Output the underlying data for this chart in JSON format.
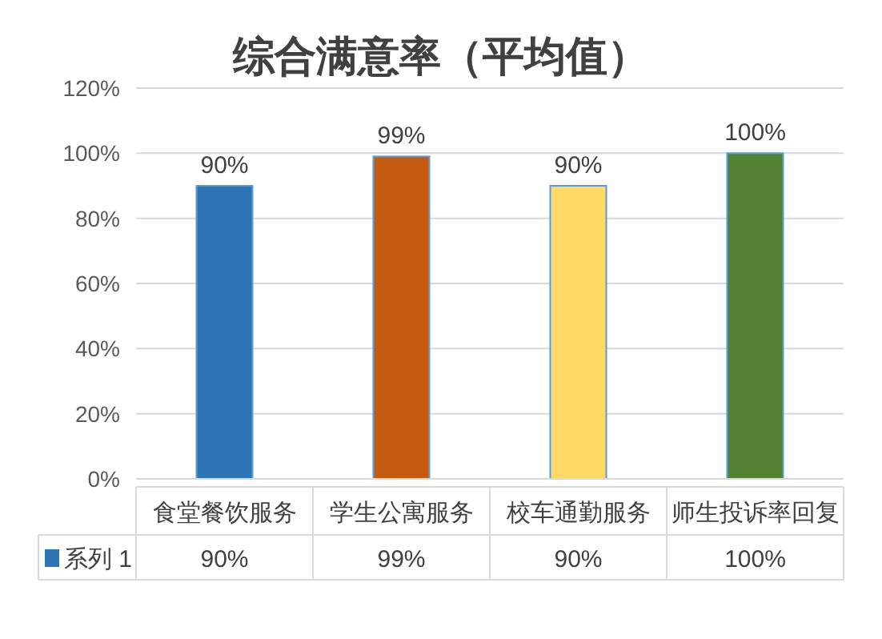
{
  "chart_data": {
    "type": "bar",
    "title": "综合满意率（平均值）",
    "categories": [
      "食堂餐饮服务",
      "学生公寓服务",
      "校车通勤服务",
      "师生投诉率回复"
    ],
    "series": [
      {
        "name": "系列 1",
        "color": "#2e75b6",
        "colors": [
          "#2e75b6",
          "#c55a11",
          "#ffd966",
          "#548235"
        ],
        "values": [
          90,
          99,
          90,
          100
        ],
        "value_labels": [
          "90%",
          "99%",
          "90%",
          "100%"
        ]
      }
    ],
    "ylim": [
      0,
      120
    ],
    "yticks": [
      {
        "value": 0,
        "label": "0%"
      },
      {
        "value": 20,
        "label": "20%"
      },
      {
        "value": 40,
        "label": "40%"
      },
      {
        "value": 60,
        "label": "60%"
      },
      {
        "value": 80,
        "label": "80%"
      },
      {
        "value": 100,
        "label": "100%"
      },
      {
        "value": 120,
        "label": "120%"
      }
    ],
    "grid": "y",
    "legend": "bottom"
  }
}
